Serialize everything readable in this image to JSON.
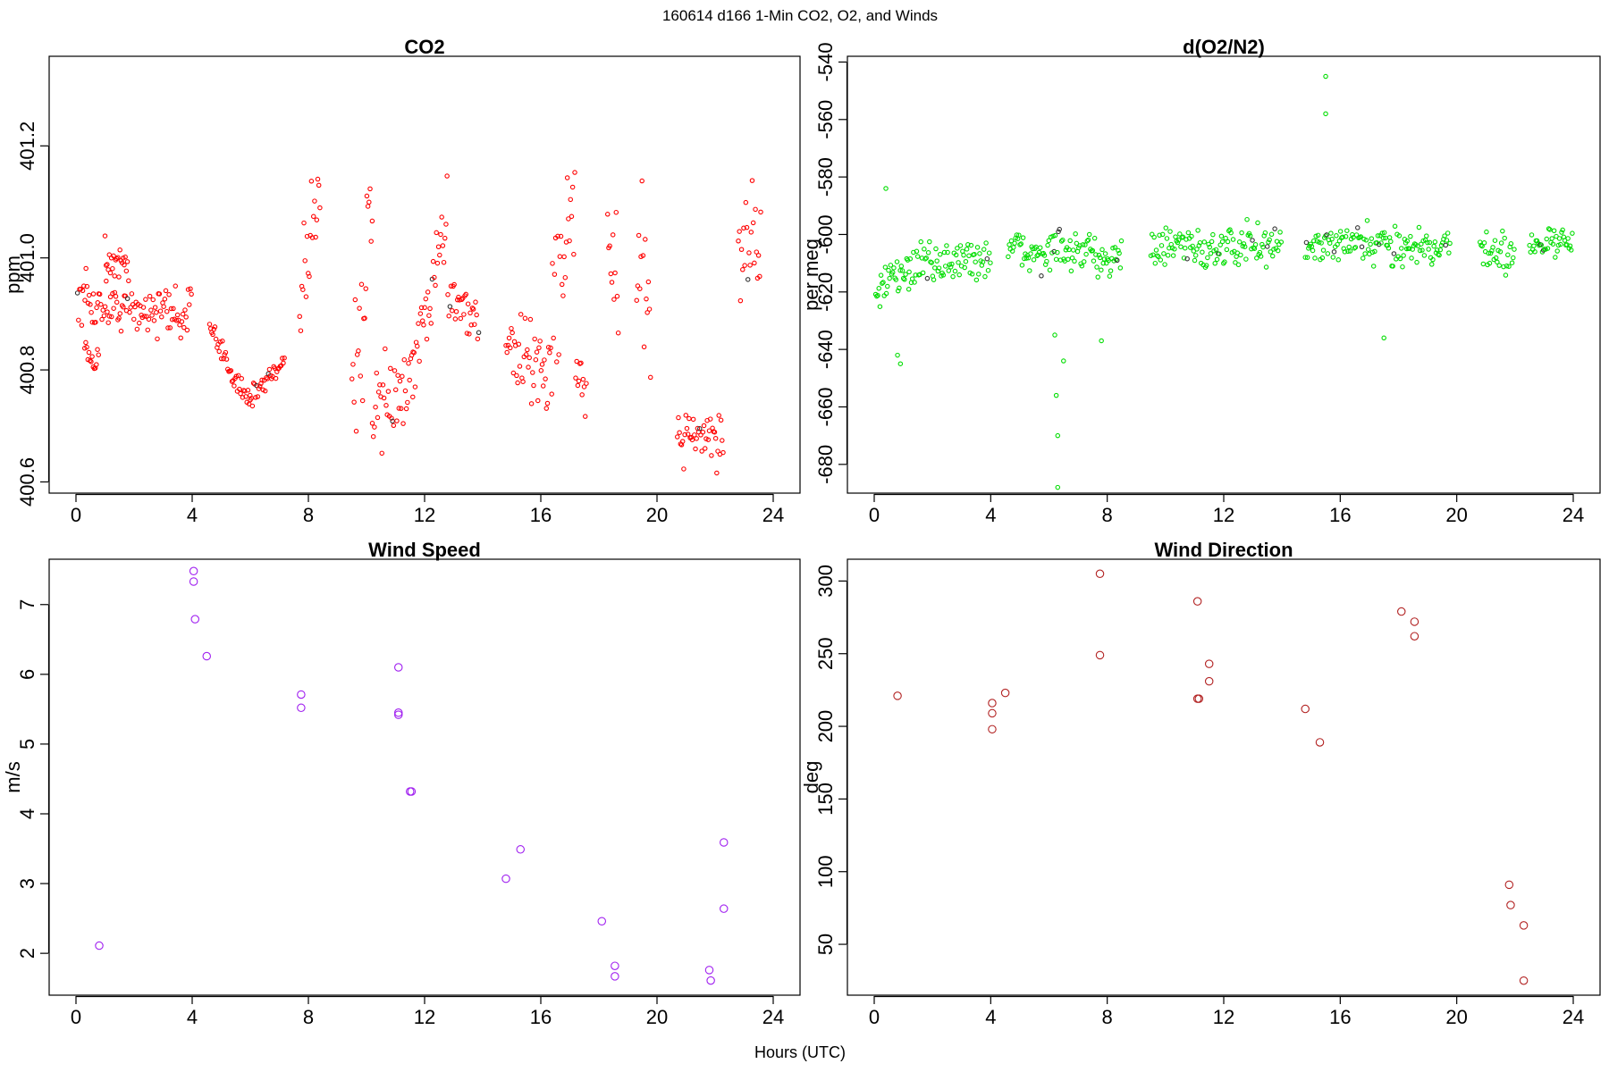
{
  "figure_title": "160614   d166   1-Min CO2, O2, and Winds",
  "shared_xlabel": "Hours (UTC)",
  "chart_data": [
    {
      "id": "co2",
      "type": "scatter",
      "title": "CO2",
      "xlabel": "",
      "ylabel": "ppm",
      "xlim": [
        0,
        24
      ],
      "ylim": [
        400.58,
        401.36
      ],
      "xticks": [
        0,
        4,
        8,
        12,
        16,
        20,
        24
      ],
      "yticks": [
        400.6,
        400.8,
        401.0,
        401.2
      ],
      "ytick_labels": [
        "400.6",
        "400.8",
        "401.0",
        "401.2"
      ],
      "color": "#ff0000",
      "marker_size": 2.2,
      "segments": [
        {
          "x": [
            0.05,
            4.0
          ],
          "y": [
            400.92,
            400.9
          ],
          "noise": 0.04
        },
        {
          "x": [
            0.3,
            0.8
          ],
          "y": [
            400.84,
            400.82
          ],
          "noise": 0.02
        },
        {
          "x": [
            1.0,
            1.8
          ],
          "y": [
            401.0,
            400.98
          ],
          "noise": 0.03
        },
        {
          "x": [
            4.6,
            6.0
          ],
          "y": [
            400.87,
            400.74
          ],
          "noise": 0.02
        },
        {
          "x": [
            6.0,
            7.2
          ],
          "y": [
            400.75,
            400.82
          ],
          "noise": 0.02
        },
        {
          "x": [
            7.7,
            8.4
          ],
          "y": [
            400.95,
            401.15
          ],
          "noise": 0.09
        },
        {
          "x": [
            9.5,
            10.2
          ],
          "y": [
            400.75,
            401.05
          ],
          "noise": 0.14
        },
        {
          "x": [
            10.2,
            11.6
          ],
          "y": [
            400.72,
            400.78
          ],
          "noise": 0.07
        },
        {
          "x": [
            11.6,
            12.8
          ],
          "y": [
            400.8,
            401.08
          ],
          "noise": 0.05
        },
        {
          "x": [
            12.8,
            13.9
          ],
          "y": [
            400.95,
            400.88
          ],
          "noise": 0.04
        },
        {
          "x": [
            14.8,
            16.4
          ],
          "y": [
            400.84,
            400.8
          ],
          "noise": 0.06
        },
        {
          "x": [
            16.4,
            17.2
          ],
          "y": [
            400.9,
            401.15
          ],
          "noise": 0.1
        },
        {
          "x": [
            17.2,
            17.6
          ],
          "y": [
            400.8,
            400.74
          ],
          "noise": 0.04
        },
        {
          "x": [
            18.3,
            18.7
          ],
          "y": [
            401.02,
            400.95
          ],
          "noise": 0.12
        },
        {
          "x": [
            19.3,
            19.8
          ],
          "y": [
            400.92,
            400.95
          ],
          "noise": 0.14
        },
        {
          "x": [
            20.7,
            22.3
          ],
          "y": [
            400.69,
            400.68
          ],
          "noise": 0.05
        },
        {
          "x": [
            22.8,
            23.6
          ],
          "y": [
            401.02,
            401.05
          ],
          "noise": 0.11
        }
      ]
    },
    {
      "id": "o2",
      "type": "scatter",
      "title": "d(O2/N2)",
      "xlabel": "",
      "ylabel": "per meg",
      "xlim": [
        0,
        24
      ],
      "ylim": [
        -690,
        -538
      ],
      "xticks": [
        0,
        4,
        8,
        12,
        16,
        20,
        24
      ],
      "yticks": [
        -680,
        -660,
        -640,
        -620,
        -600,
        -580,
        -560,
        -540
      ],
      "ytick_labels": [
        "-680",
        "-660",
        "-640",
        "-620",
        "-600",
        "-580",
        "-560",
        "-540"
      ],
      "color": "#00dd00",
      "marker_size": 2.2,
      "segments": [
        {
          "x": [
            0.05,
            1.2
          ],
          "y": [
            -620,
            -612
          ],
          "noise": 6
        },
        {
          "x": [
            1.2,
            4.0
          ],
          "y": [
            -611,
            -608
          ],
          "noise": 6
        },
        {
          "x": [
            4.6,
            8.5
          ],
          "y": [
            -606,
            -607
          ],
          "noise": 6
        },
        {
          "x": [
            9.5,
            14.0
          ],
          "y": [
            -605,
            -604
          ],
          "noise": 6
        },
        {
          "x": [
            14.8,
            18.3
          ],
          "y": [
            -604,
            -604
          ],
          "noise": 6
        },
        {
          "x": [
            18.3,
            19.8
          ],
          "y": [
            -604,
            -604
          ],
          "noise": 5
        },
        {
          "x": [
            20.8,
            22.0
          ],
          "y": [
            -605,
            -607
          ],
          "noise": 6
        },
        {
          "x": [
            22.5,
            24.0
          ],
          "y": [
            -604,
            -602
          ],
          "noise": 4
        }
      ],
      "outliers": [
        {
          "x": 0.4,
          "y": -584
        },
        {
          "x": 0.8,
          "y": -642
        },
        {
          "x": 0.9,
          "y": -645
        },
        {
          "x": 6.2,
          "y": -635
        },
        {
          "x": 6.25,
          "y": -656
        },
        {
          "x": 6.3,
          "y": -670
        },
        {
          "x": 6.3,
          "y": -688
        },
        {
          "x": 6.5,
          "y": -644
        },
        {
          "x": 7.8,
          "y": -637
        },
        {
          "x": 15.5,
          "y": -545
        },
        {
          "x": 15.5,
          "y": -558
        },
        {
          "x": 17.5,
          "y": -636
        }
      ]
    },
    {
      "id": "wind-speed",
      "type": "scatter",
      "title": "Wind Speed",
      "xlabel": "",
      "ylabel": "m/s",
      "xlim": [
        0,
        24
      ],
      "ylim": [
        1.4,
        7.65
      ],
      "xticks": [
        0,
        4,
        8,
        12,
        16,
        20,
        24
      ],
      "yticks": [
        2,
        3,
        4,
        5,
        6,
        7
      ],
      "ytick_labels": [
        "2",
        "3",
        "4",
        "5",
        "6",
        "7"
      ],
      "color": "#a020f0",
      "marker_size": 4.2,
      "points": [
        {
          "x": 0.8,
          "y": 2.11
        },
        {
          "x": 4.05,
          "y": 7.48
        },
        {
          "x": 4.05,
          "y": 7.33
        },
        {
          "x": 4.1,
          "y": 6.79
        },
        {
          "x": 4.5,
          "y": 6.26
        },
        {
          "x": 7.75,
          "y": 5.71
        },
        {
          "x": 7.75,
          "y": 5.52
        },
        {
          "x": 11.1,
          "y": 6.1
        },
        {
          "x": 11.1,
          "y": 5.45
        },
        {
          "x": 11.1,
          "y": 5.42
        },
        {
          "x": 11.5,
          "y": 4.32
        },
        {
          "x": 11.55,
          "y": 4.32
        },
        {
          "x": 14.8,
          "y": 3.07
        },
        {
          "x": 15.3,
          "y": 3.49
        },
        {
          "x": 18.1,
          "y": 2.46
        },
        {
          "x": 18.55,
          "y": 1.82
        },
        {
          "x": 18.55,
          "y": 1.67
        },
        {
          "x": 21.8,
          "y": 1.76
        },
        {
          "x": 21.85,
          "y": 1.61
        },
        {
          "x": 22.3,
          "y": 3.59
        },
        {
          "x": 22.3,
          "y": 2.64
        }
      ]
    },
    {
      "id": "wind-direction",
      "type": "scatter",
      "title": "Wind Direction",
      "xlabel": "",
      "ylabel": "deg",
      "xlim": [
        0,
        24
      ],
      "ylim": [
        15,
        315
      ],
      "xticks": [
        0,
        4,
        8,
        12,
        16,
        20,
        24
      ],
      "yticks": [
        50,
        100,
        150,
        200,
        250,
        300
      ],
      "ytick_labels": [
        "50",
        "100",
        "150",
        "200",
        "250",
        "300"
      ],
      "color": "#b22222",
      "marker_size": 4.2,
      "points": [
        {
          "x": 0.8,
          "y": 221
        },
        {
          "x": 4.05,
          "y": 216
        },
        {
          "x": 4.05,
          "y": 209
        },
        {
          "x": 4.05,
          "y": 198
        },
        {
          "x": 4.5,
          "y": 223
        },
        {
          "x": 7.75,
          "y": 305
        },
        {
          "x": 7.75,
          "y": 249
        },
        {
          "x": 11.1,
          "y": 286
        },
        {
          "x": 11.1,
          "y": 219
        },
        {
          "x": 11.15,
          "y": 219
        },
        {
          "x": 11.5,
          "y": 243
        },
        {
          "x": 11.5,
          "y": 231
        },
        {
          "x": 14.8,
          "y": 212
        },
        {
          "x": 15.3,
          "y": 189
        },
        {
          "x": 18.1,
          "y": 279
        },
        {
          "x": 18.55,
          "y": 272
        },
        {
          "x": 18.55,
          "y": 262
        },
        {
          "x": 21.8,
          "y": 91
        },
        {
          "x": 21.85,
          "y": 77
        },
        {
          "x": 22.3,
          "y": 63
        },
        {
          "x": 22.3,
          "y": 25
        }
      ]
    }
  ]
}
